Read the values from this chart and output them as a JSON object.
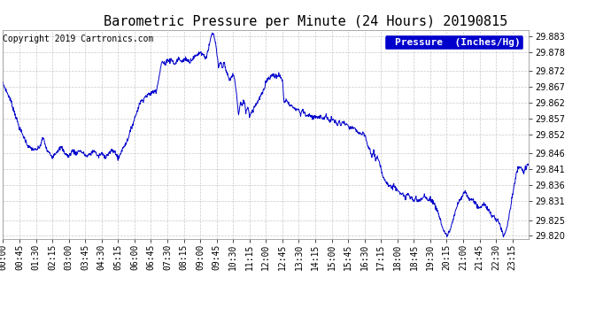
{
  "title": "Barometric Pressure per Minute (24 Hours) 20190815",
  "copyright": "Copyright 2019 Cartronics.com",
  "legend_label": "Pressure  (Inches/Hg)",
  "line_color": "#0000CC",
  "background_color": "#ffffff",
  "plot_bg_color": "#ffffff",
  "legend_bg": "#0000CC",
  "legend_text_color": "#ffffff",
  "grid_color": "#bbbbbb",
  "ylim": [
    29.819,
    29.885
  ],
  "yticks": [
    29.82,
    29.825,
    29.831,
    29.836,
    29.841,
    29.846,
    29.852,
    29.857,
    29.862,
    29.867,
    29.872,
    29.878,
    29.883
  ],
  "xtick_interval_minutes": 45,
  "total_minutes": 1440,
  "title_fontsize": 11,
  "copyright_fontsize": 7,
  "tick_fontsize": 7,
  "legend_fontsize": 8,
  "keypoints": [
    [
      0,
      29.868
    ],
    [
      20,
      29.863
    ],
    [
      45,
      29.854
    ],
    [
      70,
      29.848
    ],
    [
      90,
      29.847
    ],
    [
      100,
      29.848
    ],
    [
      110,
      29.851
    ],
    [
      120,
      29.847
    ],
    [
      135,
      29.845
    ],
    [
      150,
      29.847
    ],
    [
      160,
      29.848
    ],
    [
      170,
      29.846
    ],
    [
      180,
      29.845
    ],
    [
      190,
      29.847
    ],
    [
      200,
      29.846
    ],
    [
      210,
      29.847
    ],
    [
      220,
      29.846
    ],
    [
      230,
      29.845
    ],
    [
      240,
      29.846
    ],
    [
      250,
      29.847
    ],
    [
      260,
      29.845
    ],
    [
      270,
      29.846
    ],
    [
      280,
      29.845
    ],
    [
      290,
      29.846
    ],
    [
      300,
      29.847
    ],
    [
      310,
      29.846
    ],
    [
      315,
      29.844
    ],
    [
      325,
      29.847
    ],
    [
      340,
      29.85
    ],
    [
      360,
      29.857
    ],
    [
      375,
      29.862
    ],
    [
      390,
      29.864
    ],
    [
      405,
      29.865
    ],
    [
      420,
      29.866
    ],
    [
      435,
      29.875
    ],
    [
      445,
      29.874
    ],
    [
      450,
      29.876
    ],
    [
      455,
      29.875
    ],
    [
      460,
      29.876
    ],
    [
      470,
      29.874
    ],
    [
      480,
      29.876
    ],
    [
      490,
      29.875
    ],
    [
      500,
      29.876
    ],
    [
      510,
      29.875
    ],
    [
      520,
      29.876
    ],
    [
      530,
      29.877
    ],
    [
      540,
      29.878
    ],
    [
      550,
      29.877
    ],
    [
      555,
      29.876
    ],
    [
      560,
      29.878
    ],
    [
      565,
      29.88
    ],
    [
      570,
      29.883
    ],
    [
      575,
      29.884
    ],
    [
      580,
      29.882
    ],
    [
      585,
      29.878
    ],
    [
      590,
      29.873
    ],
    [
      595,
      29.875
    ],
    [
      600,
      29.873
    ],
    [
      605,
      29.875
    ],
    [
      610,
      29.872
    ],
    [
      615,
      29.871
    ],
    [
      620,
      29.869
    ],
    [
      625,
      29.87
    ],
    [
      630,
      29.871
    ],
    [
      635,
      29.869
    ],
    [
      640,
      29.864
    ],
    [
      645,
      29.858
    ],
    [
      650,
      29.862
    ],
    [
      655,
      29.861
    ],
    [
      660,
      29.863
    ],
    [
      665,
      29.859
    ],
    [
      670,
      29.861
    ],
    [
      675,
      29.858
    ],
    [
      685,
      29.86
    ],
    [
      695,
      29.862
    ],
    [
      705,
      29.864
    ],
    [
      715,
      29.866
    ],
    [
      720,
      29.869
    ],
    [
      730,
      29.87
    ],
    [
      740,
      29.871
    ],
    [
      750,
      29.87
    ],
    [
      755,
      29.871
    ],
    [
      760,
      29.87
    ],
    [
      765,
      29.869
    ],
    [
      770,
      29.862
    ],
    [
      775,
      29.863
    ],
    [
      780,
      29.862
    ],
    [
      790,
      29.861
    ],
    [
      800,
      29.86
    ],
    [
      810,
      29.86
    ],
    [
      815,
      29.858
    ],
    [
      820,
      29.86
    ],
    [
      825,
      29.859
    ],
    [
      830,
      29.858
    ],
    [
      840,
      29.858
    ],
    [
      850,
      29.857
    ],
    [
      855,
      29.858
    ],
    [
      860,
      29.857
    ],
    [
      870,
      29.858
    ],
    [
      875,
      29.857
    ],
    [
      880,
      29.857
    ],
    [
      885,
      29.858
    ],
    [
      890,
      29.857
    ],
    [
      895,
      29.856
    ],
    [
      900,
      29.857
    ],
    [
      910,
      29.856
    ],
    [
      915,
      29.855
    ],
    [
      920,
      29.856
    ],
    [
      925,
      29.855
    ],
    [
      930,
      29.856
    ],
    [
      940,
      29.855
    ],
    [
      950,
      29.854
    ],
    [
      960,
      29.854
    ],
    [
      970,
      29.853
    ],
    [
      980,
      29.852
    ],
    [
      990,
      29.852
    ],
    [
      995,
      29.85
    ],
    [
      1000,
      29.848
    ],
    [
      1005,
      29.847
    ],
    [
      1010,
      29.845
    ],
    [
      1015,
      29.847
    ],
    [
      1020,
      29.844
    ],
    [
      1025,
      29.845
    ],
    [
      1030,
      29.843
    ],
    [
      1035,
      29.841
    ],
    [
      1040,
      29.839
    ],
    [
      1045,
      29.838
    ],
    [
      1050,
      29.837
    ],
    [
      1055,
      29.836
    ],
    [
      1060,
      29.836
    ],
    [
      1065,
      29.835
    ],
    [
      1070,
      29.836
    ],
    [
      1075,
      29.835
    ],
    [
      1080,
      29.835
    ],
    [
      1085,
      29.834
    ],
    [
      1090,
      29.833
    ],
    [
      1095,
      29.833
    ],
    [
      1100,
      29.832
    ],
    [
      1105,
      29.833
    ],
    [
      1110,
      29.833
    ],
    [
      1115,
      29.832
    ],
    [
      1120,
      29.832
    ],
    [
      1125,
      29.831
    ],
    [
      1130,
      29.832
    ],
    [
      1135,
      29.831
    ],
    [
      1140,
      29.831
    ],
    [
      1150,
      29.832
    ],
    [
      1155,
      29.833
    ],
    [
      1160,
      29.832
    ],
    [
      1165,
      29.831
    ],
    [
      1170,
      29.832
    ],
    [
      1175,
      29.831
    ],
    [
      1180,
      29.83
    ],
    [
      1185,
      29.829
    ],
    [
      1190,
      29.828
    ],
    [
      1195,
      29.826
    ],
    [
      1200,
      29.824
    ],
    [
      1205,
      29.822
    ],
    [
      1210,
      29.821
    ],
    [
      1215,
      29.82
    ],
    [
      1220,
      29.821
    ],
    [
      1225,
      29.822
    ],
    [
      1230,
      29.824
    ],
    [
      1235,
      29.826
    ],
    [
      1240,
      29.828
    ],
    [
      1245,
      29.83
    ],
    [
      1250,
      29.831
    ],
    [
      1255,
      29.832
    ],
    [
      1260,
      29.833
    ],
    [
      1265,
      29.834
    ],
    [
      1267,
      29.834
    ],
    [
      1270,
      29.833
    ],
    [
      1275,
      29.832
    ],
    [
      1280,
      29.831
    ],
    [
      1285,
      29.832
    ],
    [
      1290,
      29.831
    ],
    [
      1295,
      29.83
    ],
    [
      1300,
      29.829
    ],
    [
      1305,
      29.829
    ],
    [
      1310,
      29.829
    ],
    [
      1315,
      29.83
    ],
    [
      1320,
      29.83
    ],
    [
      1325,
      29.829
    ],
    [
      1330,
      29.828
    ],
    [
      1335,
      29.827
    ],
    [
      1340,
      29.826
    ],
    [
      1345,
      29.826
    ],
    [
      1350,
      29.825
    ],
    [
      1355,
      29.825
    ],
    [
      1360,
      29.824
    ],
    [
      1362,
      29.823
    ],
    [
      1365,
      29.822
    ],
    [
      1368,
      29.821
    ],
    [
      1370,
      29.82
    ],
    [
      1375,
      29.821
    ],
    [
      1380,
      29.823
    ],
    [
      1385,
      29.826
    ],
    [
      1390,
      29.829
    ],
    [
      1395,
      29.833
    ],
    [
      1400,
      29.836
    ],
    [
      1405,
      29.839
    ],
    [
      1410,
      29.841
    ],
    [
      1415,
      29.842
    ],
    [
      1420,
      29.841
    ],
    [
      1425,
      29.84
    ],
    [
      1430,
      29.841
    ],
    [
      1435,
      29.842
    ],
    [
      1439,
      29.843
    ]
  ]
}
